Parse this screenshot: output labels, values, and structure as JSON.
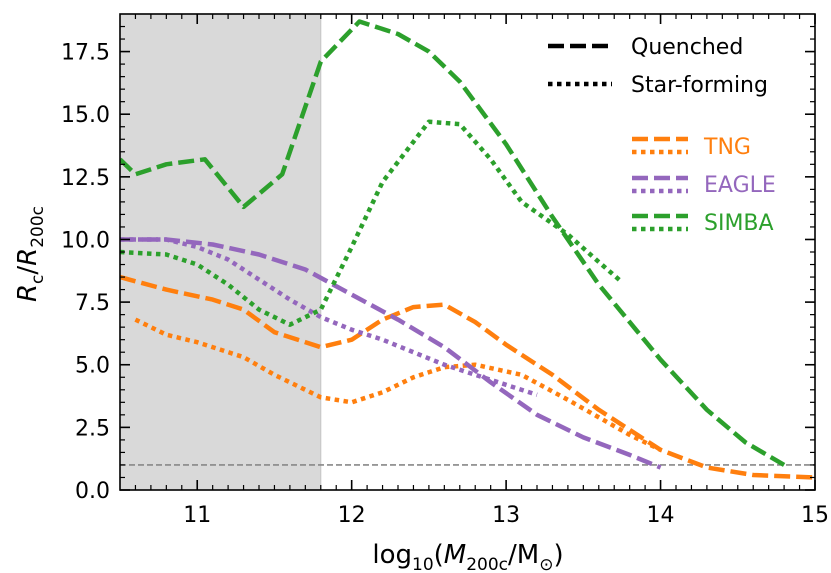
{
  "chart_data": {
    "type": "line",
    "xlabel": {
      "prefix": "log",
      "sub1": "10",
      "open": "(",
      "M": "M",
      "sub2": "200c",
      "slash": "/M",
      "sun": "⊙",
      "close": ")"
    },
    "ylabel": {
      "R1": "R",
      "sub1": "c",
      "slash": "/",
      "R2": "R",
      "sub2": "200c"
    },
    "xlim": [
      10.5,
      15.0
    ],
    "ylim": [
      0.0,
      19.0
    ],
    "xticks": [
      "11",
      "12",
      "13",
      "14",
      "15"
    ],
    "yticks": [
      "0.0",
      "2.5",
      "5.0",
      "7.5",
      "10.0",
      "12.5",
      "15.0",
      "17.5"
    ],
    "shaded_region": [
      10.5,
      11.8
    ],
    "reference_line_y": 1.0,
    "style_legend": [
      {
        "label": "Quenched",
        "dash": "dashed"
      },
      {
        "label": "Star-forming",
        "dash": "dotted"
      }
    ],
    "colors": {
      "TNG": "#ff7f0e",
      "EAGLE": "#9467bd",
      "SIMBA": "#2ca02c"
    },
    "series": [
      {
        "name": "TNG",
        "state": "Quenched",
        "x": [
          10.5,
          10.8,
          11.1,
          11.3,
          11.5,
          11.8,
          12.0,
          12.2,
          12.4,
          12.6,
          12.8,
          13.0,
          13.3,
          13.6,
          14.0,
          14.3,
          14.6,
          15.0
        ],
        "y": [
          8.5,
          8.0,
          7.6,
          7.2,
          6.3,
          5.7,
          6.0,
          6.8,
          7.3,
          7.4,
          6.7,
          5.8,
          4.6,
          3.2,
          1.6,
          0.9,
          0.6,
          0.5
        ]
      },
      {
        "name": "TNG",
        "state": "Star-forming",
        "x": [
          10.6,
          10.8,
          11.0,
          11.3,
          11.5,
          11.7,
          11.8,
          12.0,
          12.2,
          12.4,
          12.6,
          12.8,
          13.1,
          13.4,
          13.8,
          14.0
        ],
        "y": [
          6.8,
          6.2,
          5.9,
          5.3,
          4.6,
          4.0,
          3.7,
          3.5,
          3.9,
          4.5,
          4.9,
          5.0,
          4.6,
          3.6,
          2.2,
          1.6
        ]
      },
      {
        "name": "EAGLE",
        "state": "Quenched",
        "x": [
          10.5,
          10.8,
          11.1,
          11.4,
          11.7,
          12.0,
          12.3,
          12.6,
          12.9,
          13.2,
          13.5,
          13.8,
          14.0
        ],
        "y": [
          10.0,
          10.0,
          9.8,
          9.4,
          8.8,
          7.8,
          6.8,
          5.7,
          4.3,
          3.0,
          2.1,
          1.4,
          0.9
        ]
      },
      {
        "name": "EAGLE",
        "state": "Star-forming",
        "x": [
          10.5,
          10.8,
          11.0,
          11.2,
          11.4,
          11.6,
          11.8,
          12.0,
          12.2,
          12.4,
          12.6,
          12.8,
          13.0,
          13.2
        ],
        "y": [
          10.0,
          10.0,
          9.7,
          9.2,
          8.4,
          7.6,
          6.9,
          6.4,
          6.0,
          5.5,
          5.0,
          4.6,
          4.2,
          3.8
        ]
      },
      {
        "name": "SIMBA",
        "state": "Quenched",
        "x": [
          10.5,
          10.6,
          10.8,
          11.05,
          11.3,
          11.55,
          11.8,
          12.05,
          12.3,
          12.5,
          12.7,
          13.0,
          13.3,
          13.6,
          14.0,
          14.3,
          14.55,
          14.8
        ],
        "y": [
          13.2,
          12.6,
          13.0,
          13.2,
          11.3,
          12.6,
          17.1,
          18.7,
          18.2,
          17.5,
          16.3,
          13.8,
          10.9,
          8.2,
          5.2,
          3.2,
          1.9,
          1.0
        ]
      },
      {
        "name": "SIMBA",
        "state": "Star-forming",
        "x": [
          10.5,
          10.8,
          11.0,
          11.2,
          11.4,
          11.6,
          11.8,
          12.0,
          12.2,
          12.5,
          12.7,
          12.9,
          13.1,
          13.4,
          13.6,
          13.75
        ],
        "y": [
          9.5,
          9.4,
          9.0,
          8.2,
          7.2,
          6.6,
          7.2,
          9.7,
          12.3,
          14.7,
          14.6,
          13.2,
          11.5,
          10.2,
          9.1,
          8.3
        ]
      }
    ]
  }
}
